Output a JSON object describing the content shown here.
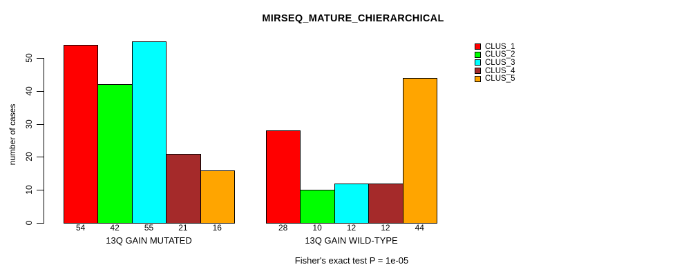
{
  "chart_data": {
    "type": "bar",
    "title": "MIRSEQ_MATURE_CHIERARCHICAL",
    "ylabel": "number of cases",
    "xlabel": "",
    "annotation": "Fisher's exact test P = 1e-05",
    "ylim": [
      0,
      57
    ],
    "yticks": [
      0,
      10,
      20,
      30,
      40,
      50
    ],
    "grid": false,
    "legend_position": "right",
    "bar_value_labels_shown": true,
    "groups": [
      {
        "label": "13Q GAIN MUTATED",
        "values": [
          54,
          42,
          55,
          21,
          16
        ]
      },
      {
        "label": "13Q GAIN WILD-TYPE",
        "values": [
          28,
          10,
          12,
          12,
          44
        ]
      }
    ],
    "series": [
      {
        "name": "CLUS_1",
        "color": "#FF0000"
      },
      {
        "name": "CLUS_2",
        "color": "#00FF00"
      },
      {
        "name": "CLUS_3",
        "color": "#00FFFF"
      },
      {
        "name": "CLUS_4",
        "color": "#A52A2A"
      },
      {
        "name": "CLUS_5",
        "color": "#FFA500"
      }
    ],
    "colors": {
      "bar_border": "#000000",
      "axis": "#000000",
      "background": "#FFFFFF"
    }
  }
}
